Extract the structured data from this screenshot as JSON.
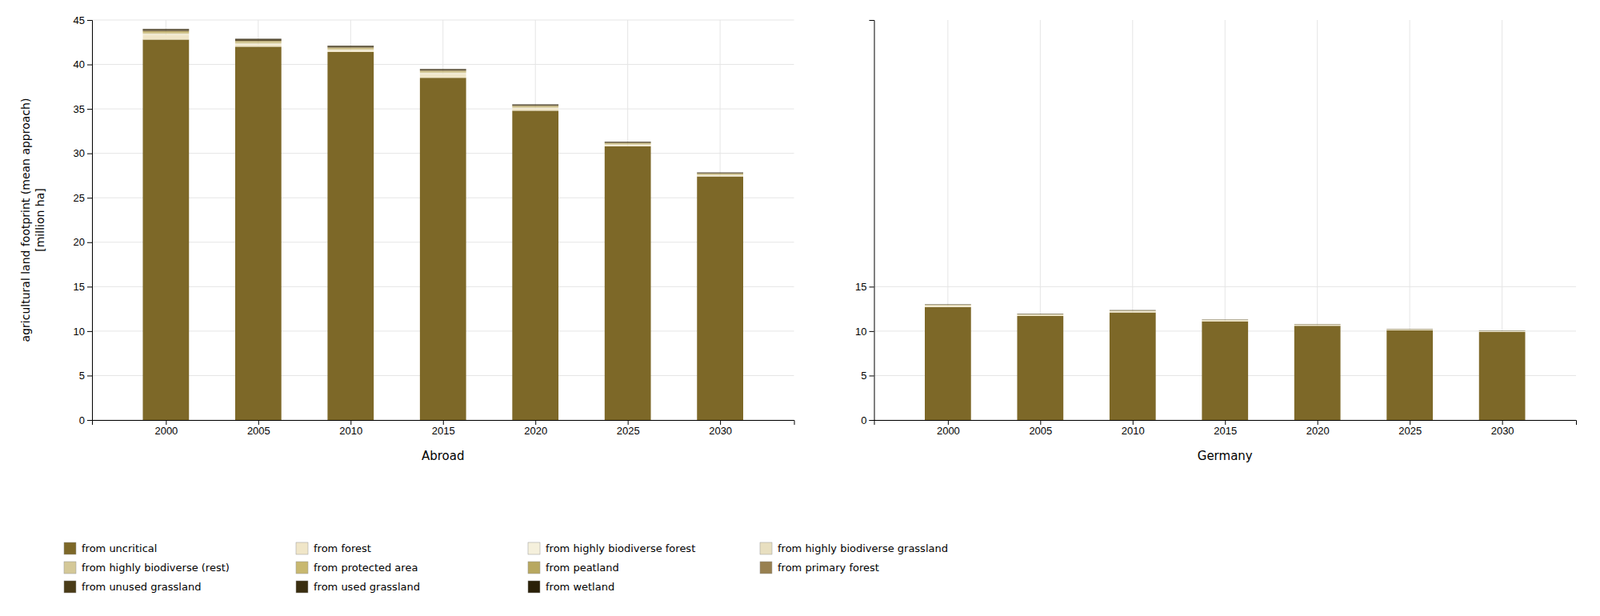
{
  "chart_data": [
    {
      "type": "bar",
      "stacked": true,
      "grid": true,
      "legend": "lower left",
      "xlabel": "Abroad",
      "ylabel": "agricultural land footprint (mean approach)\n[million ha]",
      "x": [
        2000,
        2005,
        2010,
        2015,
        2020,
        2025,
        2030
      ],
      "xlim": [
        1996,
        2034
      ],
      "xticks": [
        2000,
        2005,
        2010,
        2015,
        2020,
        2025,
        2030
      ],
      "ylim": [
        0,
        45
      ],
      "yticks": [
        0,
        5,
        10,
        15,
        20,
        25,
        30,
        35,
        40,
        45
      ],
      "series": [
        {
          "name": "from uncritical",
          "color": "#7d6828",
          "values": [
            42.8,
            42.0,
            41.4,
            38.5,
            34.8,
            30.8,
            27.4
          ]
        },
        {
          "name": "from forest",
          "color": "#f0e6c8",
          "values": [
            0.55,
            0.25,
            0.15,
            0.45,
            0.25,
            0.1,
            0.08
          ]
        },
        {
          "name": "from highly biodiverse forest",
          "color": "#f5f0dc",
          "values": [
            0.05,
            0.05,
            0.05,
            0.05,
            0.04,
            0.04,
            0.04
          ]
        },
        {
          "name": "from highly biodiverse grassland",
          "color": "#e8dfc0",
          "values": [
            0.05,
            0.05,
            0.05,
            0.05,
            0.04,
            0.04,
            0.04
          ]
        },
        {
          "name": "from highly biodiverse (rest)",
          "color": "#d4c898",
          "values": [
            0.1,
            0.1,
            0.08,
            0.08,
            0.07,
            0.06,
            0.06
          ]
        },
        {
          "name": "from protected area",
          "color": "#c8b870",
          "values": [
            0.08,
            0.07,
            0.06,
            0.06,
            0.05,
            0.05,
            0.04
          ]
        },
        {
          "name": "from peatland",
          "color": "#b8a860",
          "values": [
            0.1,
            0.1,
            0.09,
            0.09,
            0.08,
            0.07,
            0.06
          ]
        },
        {
          "name": "from primary forest",
          "color": "#988050",
          "values": [
            0.05,
            0.05,
            0.04,
            0.04,
            0.03,
            0.03,
            0.03
          ]
        },
        {
          "name": "from unused grassland",
          "color": "#4a3c18",
          "values": [
            0.1,
            0.1,
            0.08,
            0.07,
            0.06,
            0.05,
            0.04
          ]
        },
        {
          "name": "from used grassland",
          "color": "#3a2e10",
          "values": [
            0.09,
            0.09,
            0.08,
            0.07,
            0.06,
            0.05,
            0.04
          ]
        },
        {
          "name": "from wetland",
          "color": "#2a2008",
          "values": [
            0.03,
            0.03,
            0.03,
            0.03,
            0.03,
            0.02,
            0.02
          ]
        }
      ]
    },
    {
      "type": "bar",
      "stacked": true,
      "grid": true,
      "xlabel": "Germany",
      "x": [
        2000,
        2005,
        2010,
        2015,
        2020,
        2025,
        2030
      ],
      "xlim": [
        1996,
        2034
      ],
      "xticks": [
        2000,
        2005,
        2010,
        2015,
        2020,
        2025,
        2030
      ],
      "ylim": [
        0,
        45
      ],
      "yticks": [
        0,
        5,
        10,
        15
      ],
      "series": [
        {
          "name": "from uncritical",
          "color": "#7d6828",
          "values": [
            12.7,
            11.7,
            12.1,
            11.1,
            10.6,
            10.1,
            9.9
          ]
        },
        {
          "name": "from forest",
          "color": "#f0e6c8",
          "values": [
            0.15,
            0.1,
            0.1,
            0.08,
            0.07,
            0.06,
            0.05
          ]
        },
        {
          "name": "from highly biodiverse forest",
          "color": "#f5f0dc",
          "values": [
            0.02,
            0.02,
            0.02,
            0.02,
            0.02,
            0.02,
            0.02
          ]
        },
        {
          "name": "from highly biodiverse grassland",
          "color": "#e8dfc0",
          "values": [
            0.02,
            0.02,
            0.02,
            0.02,
            0.02,
            0.01,
            0.01
          ]
        },
        {
          "name": "from highly biodiverse (rest)",
          "color": "#d4c898",
          "values": [
            0.02,
            0.02,
            0.02,
            0.02,
            0.02,
            0.01,
            0.01
          ]
        },
        {
          "name": "from protected area",
          "color": "#c8b870",
          "values": [
            0.02,
            0.02,
            0.02,
            0.01,
            0.01,
            0.01,
            0.01
          ]
        },
        {
          "name": "from peatland",
          "color": "#b8a860",
          "values": [
            0.02,
            0.02,
            0.02,
            0.01,
            0.01,
            0.01,
            0.01
          ]
        },
        {
          "name": "from primary forest",
          "color": "#988050",
          "values": [
            0.01,
            0.01,
            0.01,
            0.01,
            0.01,
            0.01,
            0.01
          ]
        },
        {
          "name": "from unused grassland",
          "color": "#4a3c18",
          "values": [
            0.02,
            0.02,
            0.02,
            0.01,
            0.01,
            0.01,
            0.01
          ]
        },
        {
          "name": "from used grassland",
          "color": "#3a2e10",
          "values": [
            0.02,
            0.02,
            0.02,
            0.01,
            0.01,
            0.01,
            0.01
          ]
        },
        {
          "name": "from wetland",
          "color": "#2a2008",
          "values": [
            0.01,
            0.01,
            0.01,
            0.01,
            0.01,
            0.01,
            0.01
          ]
        }
      ]
    }
  ]
}
